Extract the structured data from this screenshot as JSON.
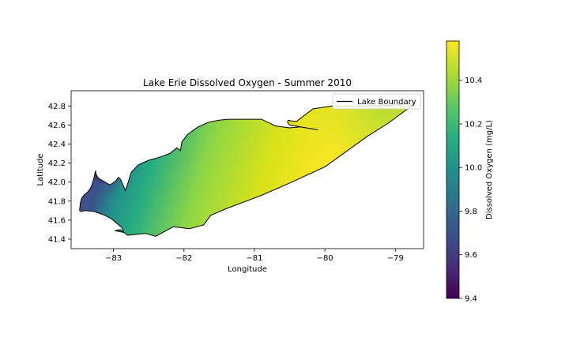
{
  "chart_data": {
    "type": "heatmap",
    "title": "Lake Erie Dissolved Oxygen - Summer 2010",
    "xlabel": "Longitude",
    "ylabel": "Latitude",
    "xlim": [
      -83.6,
      -78.6
    ],
    "ylim": [
      41.3,
      42.96
    ],
    "xticks": [
      -83,
      -82,
      -81,
      -80,
      -79
    ],
    "yticks": [
      41.4,
      41.6,
      41.8,
      42.0,
      42.2,
      42.4,
      42.6,
      42.8
    ],
    "grid": false,
    "legend": {
      "entries": [
        "Lake Boundary"
      ],
      "placement": "top-right"
    },
    "colorbar": {
      "label": "Dissolved Oxygen (mg/L)",
      "range": [
        9.4,
        10.58
      ],
      "ticks": [
        9.4,
        9.6,
        9.8,
        10.0,
        10.2,
        10.4
      ],
      "colormap": "viridis"
    },
    "boundary": {
      "name": "Lake Boundary",
      "lon": [
        -83.48,
        -83.47,
        -83.45,
        -83.42,
        -83.36,
        -83.33,
        -83.31,
        -83.28,
        -83.26,
        -83.25,
        -83.25,
        -83.23,
        -83.21,
        -83.19,
        -83.05,
        -82.97,
        -82.93,
        -82.9,
        -82.87,
        -82.83,
        -82.79,
        -82.75,
        -82.65,
        -82.5,
        -82.35,
        -82.2,
        -82.1,
        -82.08,
        -82.05,
        -82.03,
        -81.95,
        -81.8,
        -81.65,
        -81.5,
        -81.38,
        -81.2,
        -80.9,
        -80.7,
        -80.5,
        -80.35,
        -80.1,
        -80.5,
        -80.53,
        -80.52,
        -80.45,
        -80.4,
        -80.17,
        -79.9,
        -79.4,
        -79.0,
        -78.92,
        -78.72,
        -79.1,
        -79.4,
        -80.0,
        -80.5,
        -80.9,
        -81.4,
        -81.62,
        -81.72,
        -81.82,
        -81.92,
        -82.15,
        -82.4,
        -82.55,
        -82.8,
        -82.9,
        -82.98,
        -82.85,
        -82.88,
        -83.02,
        -83.12,
        -83.27,
        -83.4,
        -83.46,
        -83.48
      ],
      "lat": [
        41.7,
        41.78,
        41.83,
        41.86,
        41.9,
        41.93,
        41.96,
        42.03,
        42.1,
        42.12,
        42.09,
        42.06,
        42.04,
        42.03,
        41.97,
        42.01,
        42.05,
        42.03,
        41.98,
        41.91,
        42.0,
        42.1,
        42.18,
        42.23,
        42.26,
        42.3,
        42.36,
        42.35,
        42.33,
        42.42,
        42.5,
        42.58,
        42.63,
        42.65,
        42.66,
        42.66,
        42.66,
        42.59,
        42.57,
        42.58,
        42.55,
        42.6,
        42.63,
        42.65,
        42.64,
        42.64,
        42.77,
        42.8,
        42.8,
        42.81,
        42.82,
        42.83,
        42.62,
        42.48,
        42.16,
        41.99,
        41.86,
        41.72,
        41.65,
        41.55,
        41.53,
        41.51,
        41.53,
        41.43,
        41.46,
        41.44,
        41.5,
        41.49,
        41.47,
        41.52,
        41.61,
        41.65,
        41.69,
        41.7,
        41.69,
        41.7
      ]
    },
    "field": [
      {
        "lon": -83.2,
        "lat": 42.08,
        "value": 9.45
      },
      {
        "lon": -83.45,
        "lat": 41.72,
        "value": 9.95
      },
      {
        "lon": -82.8,
        "lat": 41.9,
        "value": 10.22
      },
      {
        "lon": -81.9,
        "lat": 42.3,
        "value": 10.42
      },
      {
        "lon": -81.5,
        "lat": 41.7,
        "value": 10.55
      },
      {
        "lon": -80.0,
        "lat": 42.3,
        "value": 10.56
      },
      {
        "lon": -79.5,
        "lat": 42.7,
        "value": 10.45
      }
    ]
  }
}
